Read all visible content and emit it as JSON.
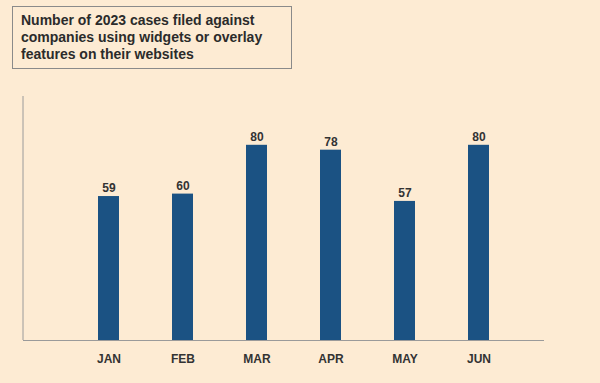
{
  "chart_data": {
    "type": "bar",
    "title": "Number of 2023 cases filed against companies using widgets or overlay features on their websites",
    "categories": [
      "JAN",
      "FEB",
      "MAR",
      "APR",
      "MAY",
      "JUN"
    ],
    "values": [
      59,
      60,
      80,
      78,
      57,
      80
    ],
    "color": "#1b5283",
    "ylim": [
      0,
      100
    ],
    "yticks": [],
    "data_labels": true,
    "tick_labels": "x"
  }
}
